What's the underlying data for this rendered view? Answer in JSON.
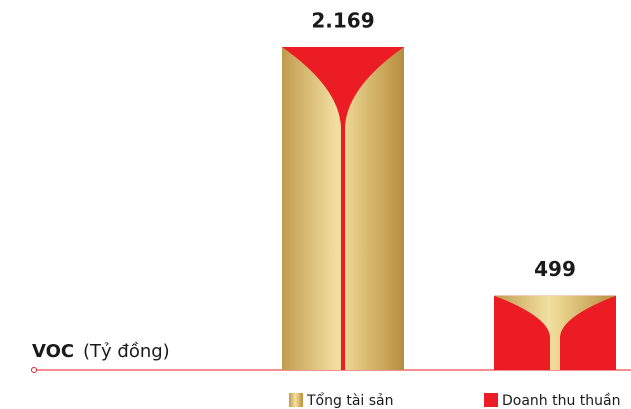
{
  "chart_data": {
    "type": "bar",
    "title": "VOC",
    "subtitle": "(Tỷ đồng)",
    "categories": [
      null
    ],
    "series": [
      {
        "name": "Tổng tài sản",
        "color": "#d9b968",
        "values": [
          2169
        ],
        "value_labels": [
          "2.169"
        ]
      },
      {
        "name": "Doanh thu thuần",
        "color": "#ec1c24",
        "values": [
          499
        ],
        "value_labels": [
          "499"
        ]
      }
    ]
  }
}
